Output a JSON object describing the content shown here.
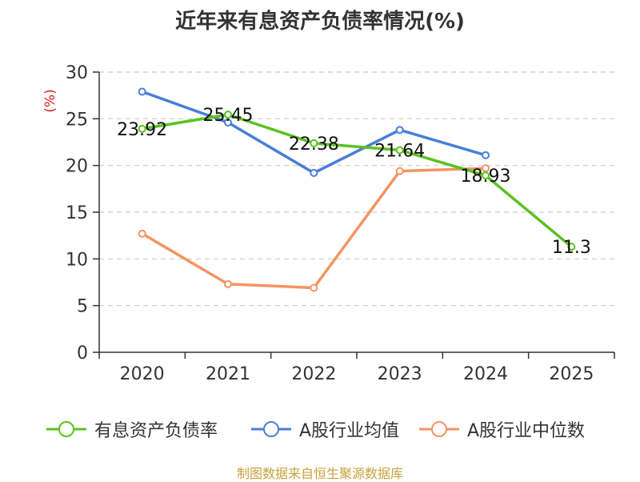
{
  "chart_data": {
    "type": "line",
    "title": "近年来有息资产负债率情况(%)",
    "ylabel": "(%)",
    "xlabel": "",
    "ylim": [
      0,
      30
    ],
    "yticks": [
      0,
      5,
      10,
      15,
      20,
      25,
      30
    ],
    "categories": [
      "2020",
      "2021",
      "2022",
      "2023",
      "2024",
      "2025"
    ],
    "grid": true,
    "series": [
      {
        "name": "有息资产负债率",
        "color": "#5ac21f",
        "values": [
          23.92,
          25.45,
          22.38,
          21.64,
          18.93,
          11.3
        ],
        "labels": [
          "23.92",
          "25.45",
          "22.38",
          "21.64",
          "18.93",
          "11.3"
        ]
      },
      {
        "name": "A股行业均值",
        "color": "#4a7fd8",
        "values": [
          27.9,
          24.6,
          19.2,
          23.8,
          21.1,
          null
        ]
      },
      {
        "name": "A股行业中位数",
        "color": "#f59462",
        "values": [
          12.7,
          7.3,
          6.9,
          19.4,
          19.7,
          null
        ]
      }
    ],
    "source": "制图数据来自恒生聚源数据库"
  }
}
